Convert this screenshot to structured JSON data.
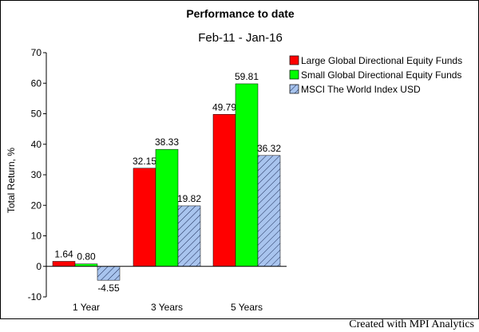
{
  "footer": "Created with MPI Analytics",
  "colors": {
    "large": "#ff0000",
    "small": "#00ff00",
    "msci_fill": "#a8c4ee",
    "msci_hatch": "#1a2a55"
  },
  "chart_data": {
    "type": "bar",
    "title": "Performance to date",
    "subtitle": "Feb-11 - Jan-16",
    "xlabel": "",
    "ylabel": "Total Return, %",
    "ylim": [
      -10,
      70
    ],
    "yticks": [
      -10,
      0,
      10,
      20,
      30,
      40,
      50,
      60,
      70
    ],
    "categories": [
      "1 Year",
      "3 Years",
      "5 Years"
    ],
    "legend_position": "top-right",
    "grid": false,
    "series": [
      {
        "name": "Large Global Directional Equity Funds",
        "values": [
          1.64,
          32.15,
          49.79
        ],
        "labels": [
          "1.64",
          "32.15",
          "49.79"
        ],
        "style": "solid-red"
      },
      {
        "name": "Small Global Directional Equity Funds",
        "values": [
          0.8,
          38.33,
          59.81
        ],
        "labels": [
          "0.80",
          "38.33",
          "59.81"
        ],
        "style": "solid-green"
      },
      {
        "name": "MSCI The World Index USD",
        "values": [
          -4.55,
          19.82,
          36.32
        ],
        "labels": [
          "-4.55",
          "19.82",
          "36.32"
        ],
        "style": "hatched-blue"
      }
    ]
  }
}
